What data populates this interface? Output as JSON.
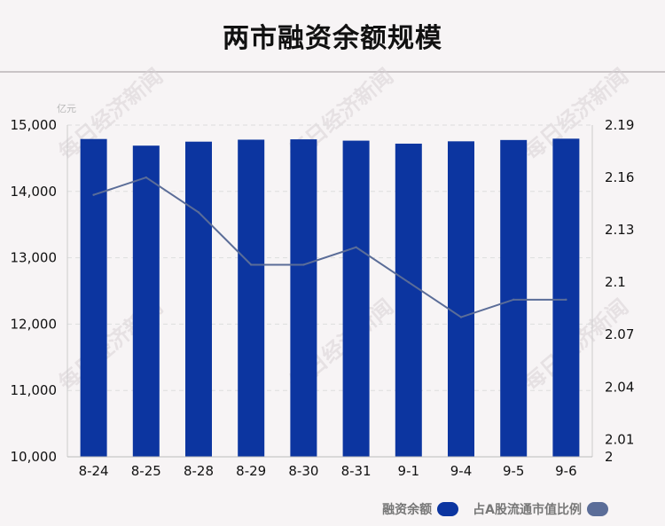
{
  "title": "两市融资余额规模",
  "watermark": "每日经济新闻",
  "colors": {
    "bar": "#0c35a0",
    "line": "#5b6d98",
    "grid": "#dddddd"
  },
  "chart_data": {
    "type": "bar",
    "categories": [
      "8-24",
      "8-25",
      "8-28",
      "8-29",
      "8-30",
      "8-31",
      "9-1",
      "9-4",
      "9-5",
      "9-6"
    ],
    "series": [
      {
        "name": "融资余额",
        "type": "bar",
        "axis": "left",
        "values": [
          14790,
          14690,
          14750,
          14780,
          14785,
          14765,
          14720,
          14755,
          14775,
          14795
        ]
      },
      {
        "name": "占A股流通市值比例",
        "type": "line",
        "axis": "right",
        "values": [
          2.15,
          2.16,
          2.14,
          2.11,
          2.11,
          2.12,
          2.1,
          2.08,
          2.09,
          2.09
        ]
      }
    ],
    "y_left": {
      "unit": "亿元",
      "ticks": [
        "10,000",
        "11,000",
        "12,000",
        "13,000",
        "14,000",
        "15,000"
      ],
      "ylim": [
        10000,
        15000
      ]
    },
    "y_right": {
      "ticks": [
        "2",
        "2.01",
        "2.04",
        "2.07",
        "2.1",
        "2.13",
        "2.16",
        "2.19"
      ],
      "ylim": [
        2.0,
        2.19
      ]
    },
    "legend": "bottom-right",
    "grid": true
  }
}
